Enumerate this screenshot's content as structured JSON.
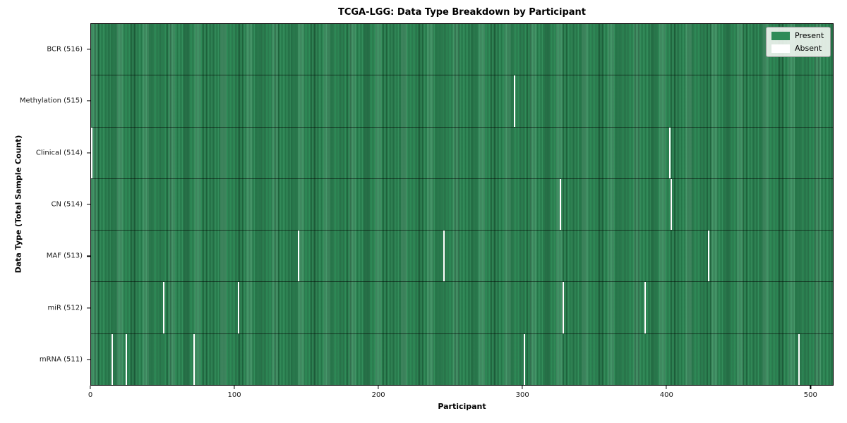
{
  "figure": {
    "title": "TCGA-LGG: Data Type Breakdown by Participant",
    "xlabel": "Participant",
    "ylabel": "Data Type (Total Sample Count)"
  },
  "legend": {
    "entries": [
      {
        "label": "Present",
        "color": "#2e8b57"
      },
      {
        "label": "Absent",
        "color": "#ffffff"
      }
    ],
    "position": "upper right"
  },
  "chart_data": {
    "type": "heatmap",
    "title": "TCGA-LGG: Data Type Breakdown by Participant",
    "xlabel": "Participant",
    "ylabel": "Data Type (Total Sample Count)",
    "n_participants": 516,
    "xlim": [
      0,
      516
    ],
    "x_ticks": [
      0,
      100,
      200,
      300,
      400,
      500
    ],
    "grid": false,
    "legend_position": "upper right",
    "colors": {
      "present": "#2e8b57",
      "absent": "#ffffff"
    },
    "rows": [
      {
        "label": "BCR (516)",
        "data_type": "BCR",
        "total_samples": 516,
        "absent_participants": []
      },
      {
        "label": "Methylation (515)",
        "data_type": "Methylation",
        "total_samples": 515,
        "absent_participants": [
          294
        ]
      },
      {
        "label": "Clinical (514)",
        "data_type": "Clinical",
        "total_samples": 514,
        "absent_participants": [
          0,
          402
        ]
      },
      {
        "label": "CN (514)",
        "data_type": "CN",
        "total_samples": 514,
        "absent_participants": [
          326,
          403
        ]
      },
      {
        "label": "MAF (513)",
        "data_type": "MAF",
        "total_samples": 513,
        "absent_participants": [
          144,
          245,
          429
        ]
      },
      {
        "label": "miR (512)",
        "data_type": "miR",
        "total_samples": 512,
        "absent_participants": [
          50,
          102,
          328,
          385
        ]
      },
      {
        "label": "mRNA (511)",
        "data_type": "mRNA",
        "total_samples": 511,
        "absent_participants": [
          14,
          24,
          71,
          301,
          492
        ]
      }
    ]
  }
}
